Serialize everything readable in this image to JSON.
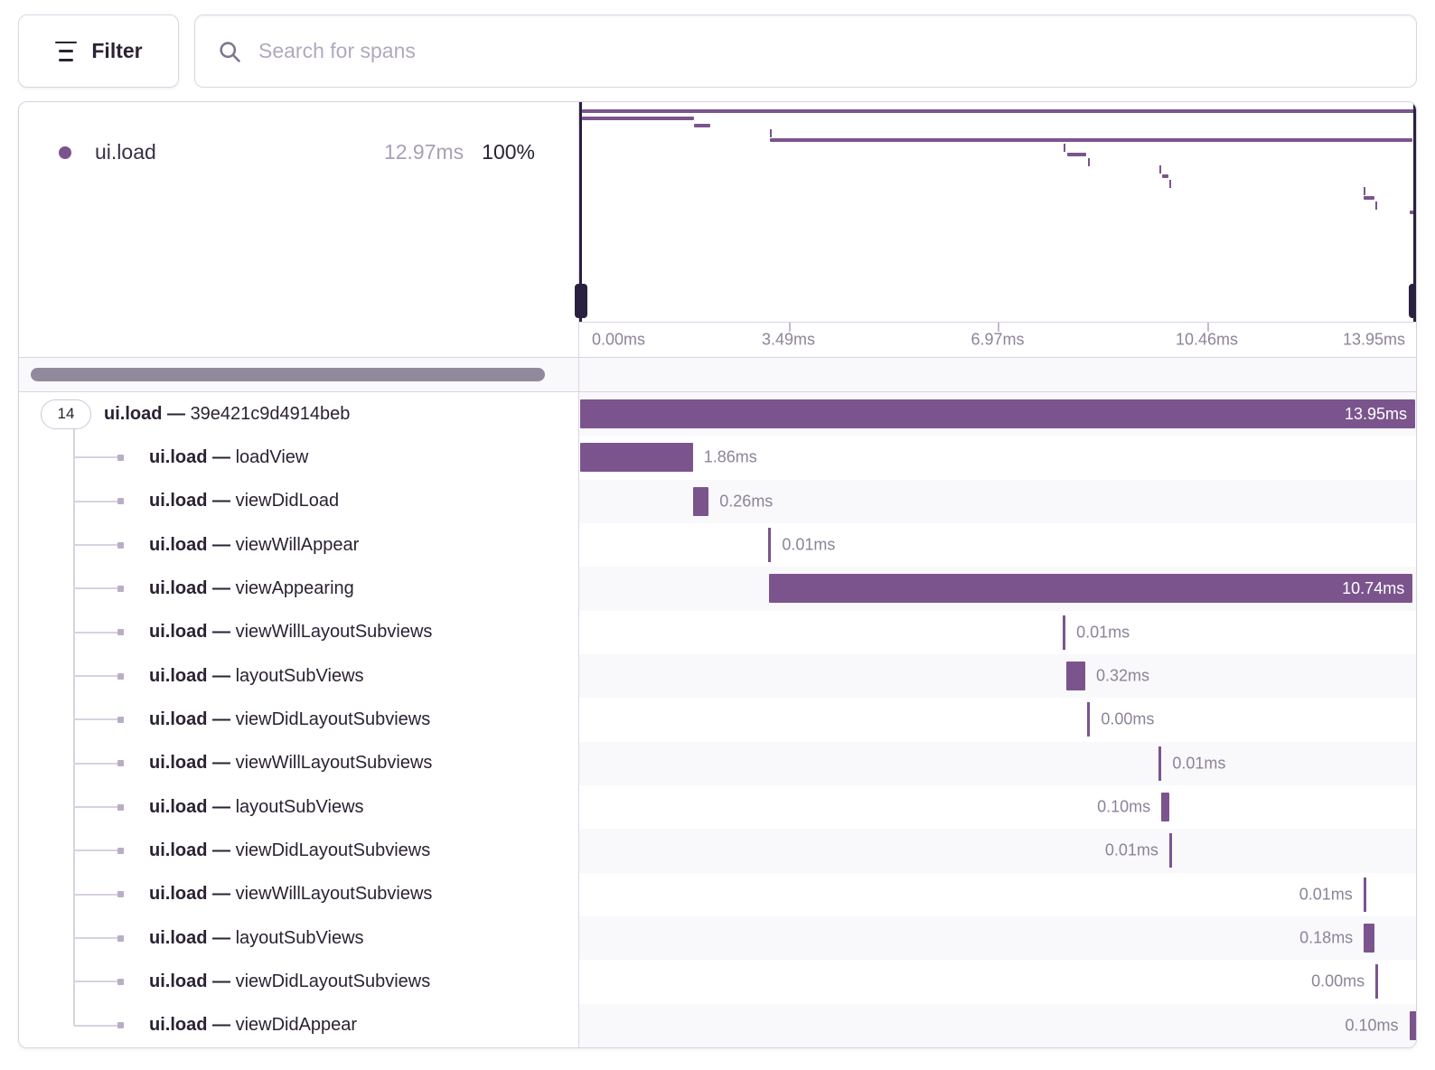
{
  "toolbar": {
    "filter_label": "Filter",
    "search_placeholder": "Search for spans"
  },
  "header": {
    "op": "ui.load",
    "avg_duration": "12.97ms",
    "percent": "100%"
  },
  "axis": {
    "tick_labels": [
      "0.00ms",
      "3.49ms",
      "6.97ms",
      "10.46ms",
      "13.95ms"
    ],
    "tick_positions_pct": [
      0,
      25,
      50,
      75,
      100
    ]
  },
  "chart_data": {
    "type": "bar",
    "title": "ui.load span waterfall",
    "x_unit": "ms",
    "x_range_ms": [
      0,
      13.95
    ],
    "root_children_count": "14",
    "rows": [
      {
        "op": "ui.load",
        "name": "39e421c9d4914beb",
        "duration": "13.95ms",
        "start_pct": 0,
        "width_pct": 100,
        "shape": "bar",
        "label_side": "inside",
        "root": true
      },
      {
        "op": "ui.load",
        "name": "loadView",
        "duration": "1.86ms",
        "start_pct": 0,
        "width_pct": 13.5,
        "shape": "bar",
        "label_side": "right"
      },
      {
        "op": "ui.load",
        "name": "viewDidLoad",
        "duration": "0.26ms",
        "start_pct": 13.5,
        "width_pct": 1.9,
        "shape": "bar",
        "label_side": "right"
      },
      {
        "op": "ui.load",
        "name": "viewWillAppear",
        "duration": "0.01ms",
        "start_pct": 22.55,
        "width_pct": 0.07,
        "shape": "tick",
        "label_side": "right"
      },
      {
        "op": "ui.load",
        "name": "viewAppearing",
        "duration": "10.74ms",
        "start_pct": 22.6,
        "width_pct": 77.1,
        "shape": "bar",
        "label_side": "inside"
      },
      {
        "op": "ui.load",
        "name": "viewWillLayoutSubviews",
        "duration": "0.01ms",
        "start_pct": 57.8,
        "width_pct": 0.07,
        "shape": "tick",
        "label_side": "right"
      },
      {
        "op": "ui.load",
        "name": "layoutSubViews",
        "duration": "0.32ms",
        "start_pct": 58.2,
        "width_pct": 2.3,
        "shape": "bar",
        "label_side": "right"
      },
      {
        "op": "ui.load",
        "name": "viewDidLayoutSubviews",
        "duration": "0.00ms",
        "start_pct": 60.75,
        "width_pct": 0.03,
        "shape": "tick",
        "label_side": "right"
      },
      {
        "op": "ui.load",
        "name": "viewWillLayoutSubviews",
        "duration": "0.01ms",
        "start_pct": 69.3,
        "width_pct": 0.07,
        "shape": "tick",
        "label_side": "right"
      },
      {
        "op": "ui.load",
        "name": "layoutSubViews",
        "duration": "0.10ms",
        "start_pct": 69.6,
        "width_pct": 0.75,
        "shape": "bar",
        "label_side": "left"
      },
      {
        "op": "ui.load",
        "name": "viewDidLayoutSubviews",
        "duration": "0.01ms",
        "start_pct": 70.55,
        "width_pct": 0.07,
        "shape": "tick",
        "label_side": "left"
      },
      {
        "op": "ui.load",
        "name": "viewWillLayoutSubviews",
        "duration": "0.01ms",
        "start_pct": 93.8,
        "width_pct": 0.07,
        "shape": "tick",
        "label_side": "left"
      },
      {
        "op": "ui.load",
        "name": "layoutSubViews",
        "duration": "0.18ms",
        "start_pct": 93.85,
        "width_pct": 1.3,
        "shape": "bar",
        "label_side": "left"
      },
      {
        "op": "ui.load",
        "name": "viewDidLayoutSubviews",
        "duration": "0.00ms",
        "start_pct": 95.25,
        "width_pct": 0.03,
        "shape": "tick",
        "label_side": "left"
      },
      {
        "op": "ui.load",
        "name": "viewDidAppear",
        "duration": "0.10ms",
        "start_pct": 99.3,
        "width_pct": 0.7,
        "shape": "bar",
        "label_side": "left"
      }
    ]
  },
  "colors": {
    "span_purple": "#7B548E",
    "handle_dark": "#2A2140",
    "stripe": "#F9F8FB",
    "border": "#DBD4E3",
    "text_dark": "#2B2233",
    "text_gray": "#8D8399"
  },
  "separator": "—"
}
